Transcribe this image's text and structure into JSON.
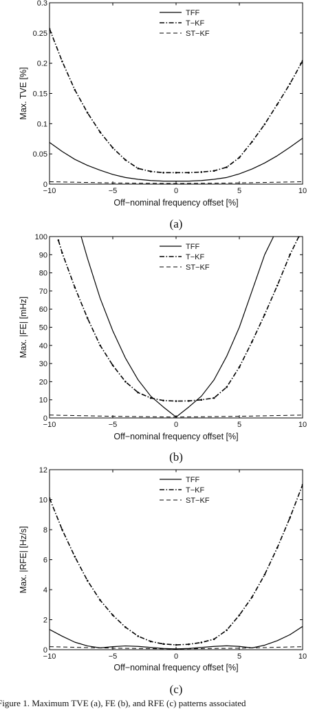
{
  "figure_caption": "Figure 1.    Maximum TVE (a), FE (b), and RFE (c) patterns associated",
  "chart_data": [
    {
      "type": "line",
      "panel_label": "(a)",
      "xlabel": "Off−nominal frequency offset [%]",
      "ylabel": "Max. TVE [%]",
      "xlim": [
        -10,
        10
      ],
      "ylim": [
        0,
        0.3
      ],
      "xticks": [
        -10,
        -5,
        0,
        5,
        10
      ],
      "xtick_labels": [
        "−10",
        "−5",
        "0",
        "5",
        "10"
      ],
      "yticks": [
        0,
        0.05,
        0.1,
        0.15,
        0.2,
        0.25,
        0.3
      ],
      "ytick_labels": [
        "0",
        "0.05",
        "0.1",
        "0.15",
        "0.2",
        "0.25",
        "0.3"
      ],
      "grid": false,
      "legend_position": "top-center",
      "series": [
        {
          "name": "TFF",
          "style": "solid",
          "x": [
            -10,
            -9,
            -8,
            -7,
            -6,
            -5,
            -4,
            -3,
            -2,
            -1,
            0,
            1,
            2,
            3,
            4,
            5,
            6,
            7,
            8,
            9,
            10
          ],
          "y": [
            0.069,
            0.054,
            0.041,
            0.031,
            0.023,
            0.016,
            0.011,
            0.008,
            0.006,
            0.005,
            0.005,
            0.005,
            0.006,
            0.008,
            0.011,
            0.017,
            0.025,
            0.035,
            0.047,
            0.061,
            0.076
          ]
        },
        {
          "name": "T−KF",
          "style": "dashdot",
          "x": [
            -10,
            -9,
            -8,
            -7,
            -6,
            -5,
            -4,
            -3,
            -2,
            -1,
            0,
            1,
            2,
            3,
            4,
            5,
            6,
            7,
            8,
            9,
            10
          ],
          "y": [
            0.257,
            0.203,
            0.156,
            0.118,
            0.086,
            0.06,
            0.04,
            0.026,
            0.021,
            0.019,
            0.019,
            0.019,
            0.02,
            0.022,
            0.028,
            0.044,
            0.07,
            0.099,
            0.132,
            0.166,
            0.204
          ]
        },
        {
          "name": "ST−KF",
          "style": "dashed",
          "x": [
            -10,
            -5,
            0,
            5,
            10
          ],
          "y": [
            0.004,
            0.002,
            0.001,
            0.002,
            0.004
          ]
        }
      ]
    },
    {
      "type": "line",
      "panel_label": "(b)",
      "xlabel": "Off−nominal frequency offset [%]",
      "ylabel": "Max. |FE| [mHz]",
      "xlim": [
        -10,
        10
      ],
      "ylim": [
        0,
        100
      ],
      "xticks": [
        -10,
        -5,
        0,
        5,
        10
      ],
      "xtick_labels": [
        "−10",
        "−5",
        "0",
        "5",
        "10"
      ],
      "yticks": [
        0,
        10,
        20,
        30,
        40,
        50,
        60,
        70,
        80,
        90,
        100
      ],
      "ytick_labels": [
        "0",
        "10",
        "20",
        "30",
        "40",
        "50",
        "60",
        "70",
        "80",
        "90",
        "100"
      ],
      "grid": false,
      "legend_position": "top-center",
      "series": [
        {
          "name": "TFF",
          "style": "solid",
          "x": [
            -7.5,
            -7,
            -6,
            -5,
            -4,
            -3,
            -2,
            -1,
            0,
            1,
            2,
            3,
            4,
            5,
            6,
            7,
            7.7
          ],
          "y": [
            100,
            88,
            66,
            48,
            33,
            21,
            12,
            6,
            0.5,
            6,
            12,
            21,
            34,
            50,
            70,
            90,
            100
          ]
        },
        {
          "name": "T−KF",
          "style": "dashdot",
          "x": [
            -9.3,
            -9,
            -8,
            -7,
            -6,
            -5,
            -4,
            -3,
            -2,
            -1,
            0,
            1,
            2,
            3,
            4,
            5,
            6,
            7,
            8,
            9,
            9.7
          ],
          "y": [
            98,
            91,
            72,
            55,
            40,
            29,
            20,
            14,
            11,
            9.6,
            9.3,
            9.4,
            10,
            11,
            17,
            28,
            42,
            57,
            73,
            90,
            100
          ]
        },
        {
          "name": "ST−KF",
          "style": "dashed",
          "x": [
            -10,
            -5,
            0,
            5,
            10
          ],
          "y": [
            1.6,
            0.9,
            0.5,
            0.9,
            1.6
          ]
        }
      ]
    },
    {
      "type": "line",
      "panel_label": "(c)",
      "xlabel": "Off−nominal frequency offset [%]",
      "ylabel": "Max. |RFE| [Hz/s]",
      "xlim": [
        -10,
        10
      ],
      "ylim": [
        0,
        12
      ],
      "xticks": [
        -10,
        -5,
        0,
        5,
        10
      ],
      "xtick_labels": [
        "−10",
        "−5",
        "0",
        "5",
        "10"
      ],
      "yticks": [
        0,
        2,
        4,
        6,
        8,
        10,
        12
      ],
      "ytick_labels": [
        "0",
        "2",
        "4",
        "6",
        "8",
        "10",
        "12"
      ],
      "grid": false,
      "legend_position": "top-center",
      "series": [
        {
          "name": "TFF",
          "style": "solid",
          "x": [
            -10,
            -9,
            -8,
            -7,
            -6,
            -5,
            -4,
            -3,
            -2,
            -1,
            0,
            1,
            2,
            3,
            4,
            5,
            6,
            7,
            8,
            9,
            10
          ],
          "y": [
            1.35,
            0.9,
            0.5,
            0.25,
            0.12,
            0.2,
            0.25,
            0.22,
            0.15,
            0.08,
            0.05,
            0.08,
            0.15,
            0.22,
            0.26,
            0.22,
            0.12,
            0.3,
            0.6,
            1.0,
            1.55
          ]
        },
        {
          "name": "T−KF",
          "style": "dashdot",
          "x": [
            -10,
            -9,
            -8,
            -7,
            -6,
            -5,
            -4,
            -3,
            -2,
            -1,
            0,
            1,
            2,
            3,
            4,
            5,
            6,
            7,
            8,
            9,
            10
          ],
          "y": [
            10.1,
            8.0,
            6.2,
            4.6,
            3.3,
            2.3,
            1.5,
            0.9,
            0.55,
            0.38,
            0.32,
            0.36,
            0.48,
            0.7,
            1.3,
            2.3,
            3.5,
            5.0,
            6.8,
            8.8,
            11.0
          ]
        },
        {
          "name": "ST−KF",
          "style": "dashed",
          "x": [
            -10,
            -5,
            0,
            5,
            10
          ],
          "y": [
            0.2,
            0.1,
            0.05,
            0.1,
            0.2
          ]
        }
      ]
    }
  ]
}
